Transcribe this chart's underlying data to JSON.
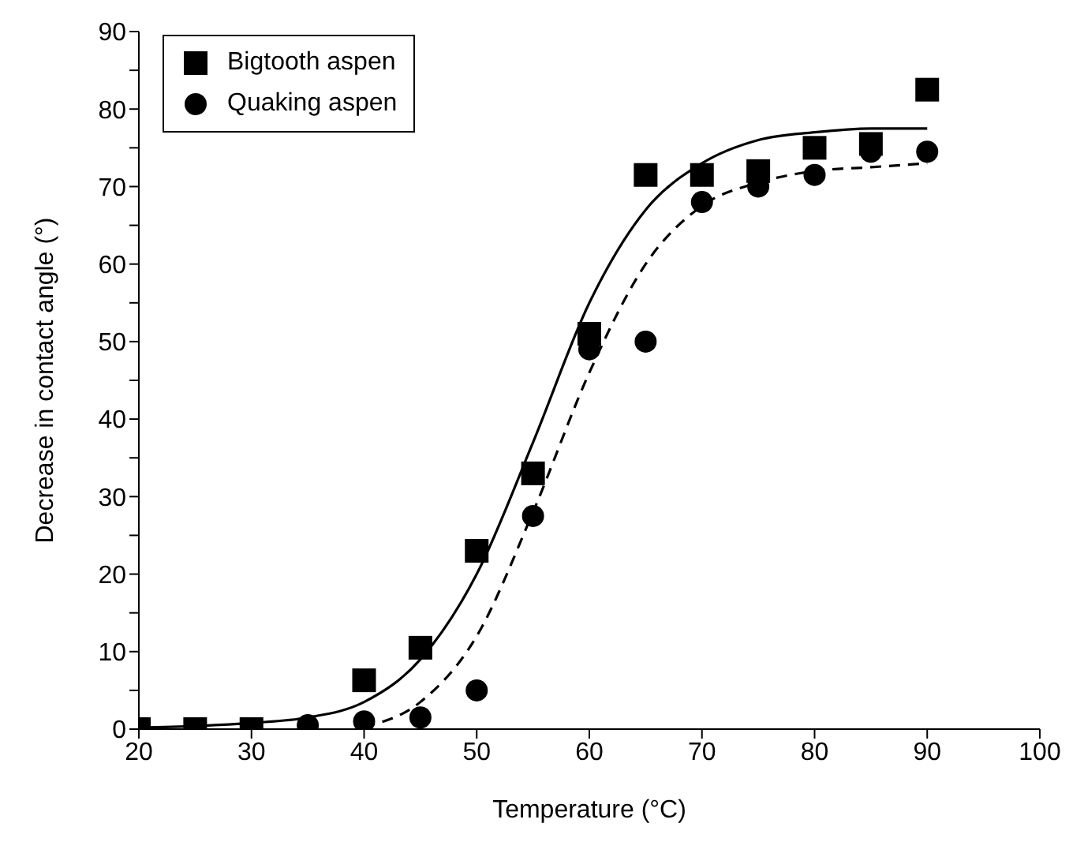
{
  "chart_data": {
    "type": "scatter",
    "xlabel": "Temperature (°C)",
    "ylabel": "Decrease in contact angle (°)",
    "xlim": [
      20,
      100
    ],
    "xticks": [
      20,
      30,
      40,
      50,
      60,
      70,
      80,
      90,
      100
    ],
    "ylim": [
      0,
      90
    ],
    "yticks": [
      0,
      {
        "value": 5,
        "label": null
      },
      10,
      {
        "value": 15,
        "label": null
      },
      20,
      {
        "value": 25,
        "label": null
      },
      30,
      {
        "value": 35,
        "label": null
      },
      40,
      {
        "value": 45,
        "label": null
      },
      50,
      {
        "value": 55,
        "label": null
      },
      60,
      {
        "value": 65,
        "label": null
      },
      70,
      {
        "value": 75,
        "label": null
      },
      80,
      {
        "value": 85,
        "label": null
      },
      90
    ],
    "grid": false,
    "legend": "top left",
    "x": [
      20,
      25,
      30,
      35,
      40,
      45,
      50,
      55,
      60,
      65,
      70,
      75,
      80,
      85,
      90
    ],
    "series": [
      {
        "name": "Bigtooth aspen",
        "color": "#000000",
        "marker": "square",
        "values": [
          0,
          0,
          0,
          null,
          6.3,
          10.5,
          23,
          33,
          51,
          71.5,
          71.5,
          72,
          75,
          75.5,
          82.5
        ]
      },
      {
        "name": "Quaking aspen",
        "color": "#000000",
        "marker": "circle",
        "values": [
          null,
          null,
          null,
          0.5,
          1,
          1.5,
          5,
          27.5,
          49,
          50,
          68,
          70,
          71.5,
          74.5,
          74.5
        ]
      },
      {
        "type": "line",
        "color": "#000000",
        "marker": "none",
        "line_style": "solid",
        "x": [
          20,
          25,
          30,
          35,
          40,
          45,
          50,
          55,
          60,
          65,
          70,
          75,
          80,
          85,
          90
        ],
        "values": [
          0.2,
          0.4,
          0.8,
          1.5,
          3.5,
          9,
          20,
          37,
          55,
          67,
          73,
          76,
          77,
          77.5,
          77.5
        ]
      },
      {
        "type": "line",
        "color": "#000000",
        "marker": "none",
        "line_style": "dashed",
        "x": [
          40,
          45,
          50,
          55,
          60,
          65,
          70,
          75,
          80,
          85,
          90
        ],
        "values": [
          0.3,
          3.5,
          12,
          28,
          46,
          60,
          67.5,
          70.5,
          72,
          72.5,
          73
        ]
      }
    ]
  }
}
